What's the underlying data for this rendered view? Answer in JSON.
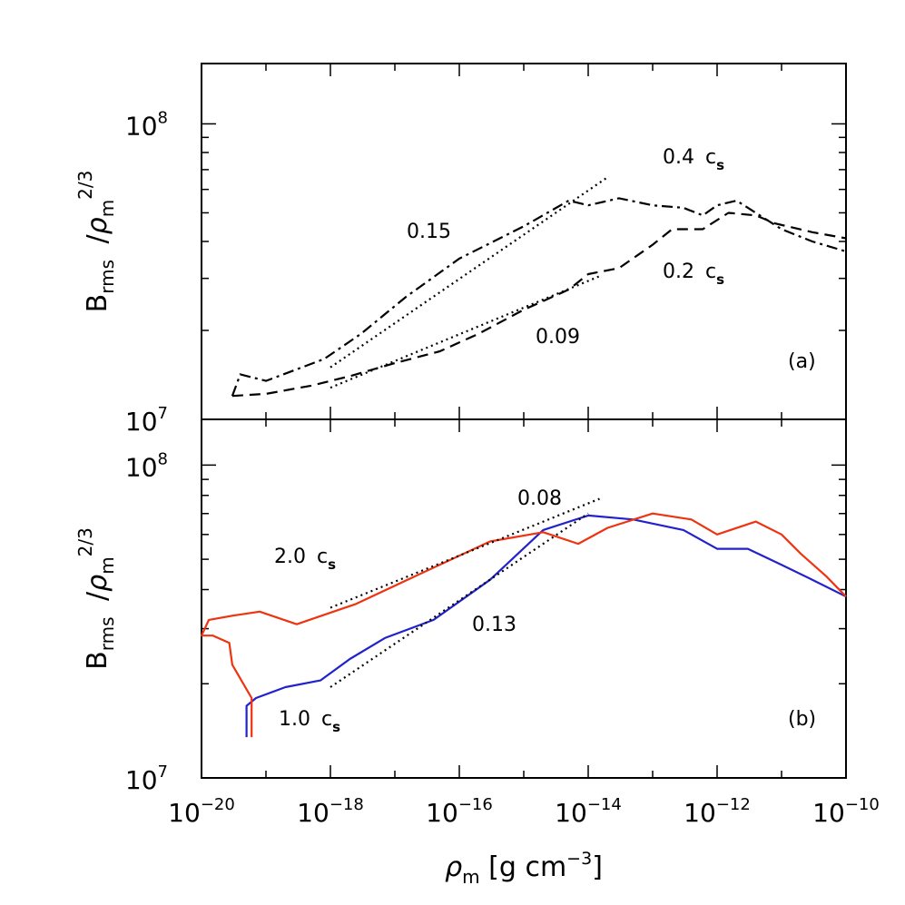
{
  "chart_data": [
    {
      "panel": "a",
      "type": "line",
      "xscale": "log",
      "yscale": "log",
      "xlim": [
        1e-20,
        1e-10
      ],
      "ylim": [
        10000000.0,
        160000000.0
      ],
      "ylabel": "B_rms / ρ_m^(2/3)",
      "panel_label": "(a)",
      "y_tick_labels": [
        {
          "base": "10",
          "exp": "7"
        },
        {
          "base": "10",
          "exp": "8"
        }
      ],
      "series": [
        {
          "name": "0.4 c_s",
          "style": "dashdot",
          "color": "#000000",
          "points": [
            [
              3e-20,
              12000000.0
            ],
            [
              4e-20,
              14200000.0
            ],
            [
              1e-19,
              13500000.0
            ],
            [
              8e-19,
              16000000.0
            ],
            [
              3e-18,
              19500000.0
            ],
            [
              1.5e-17,
              26000000.0
            ],
            [
              1e-16,
              35000000.0
            ],
            [
              1e-15,
              45000000.0
            ],
            [
              5e-15,
              55000000.0
            ],
            [
              1e-14,
              53000000.0
            ],
            [
              3e-14,
              56000000.0
            ],
            [
              1e-13,
              53000000.0
            ],
            [
              3e-13,
              52000000.0
            ],
            [
              6e-13,
              49000000.0
            ],
            [
              1e-12,
              53000000.0
            ],
            [
              2e-12,
              55000000.0
            ],
            [
              4e-12,
              50000000.0
            ],
            [
              1e-11,
              44000000.0
            ],
            [
              3e-11,
              40000000.0
            ],
            [
              1e-10,
              37000000.0
            ]
          ]
        },
        {
          "name": "0.2 c_s",
          "style": "dashed",
          "color": "#000000",
          "points": [
            [
              3e-20,
              12000000.0
            ],
            [
              1e-19,
              12200000.0
            ],
            [
              5e-19,
              13000000.0
            ],
            [
              2e-18,
              14000000.0
            ],
            [
              1e-17,
              15500000.0
            ],
            [
              5e-17,
              17000000.0
            ],
            [
              2e-16,
              19500000.0
            ],
            [
              1e-15,
              23500000.0
            ],
            [
              5e-15,
              27500000.0
            ],
            [
              1e-14,
              31000000.0
            ],
            [
              3e-14,
              32500000.0
            ],
            [
              1e-13,
              39000000.0
            ],
            [
              2e-13,
              44000000.0
            ],
            [
              6e-13,
              44000000.0
            ],
            [
              1.5e-12,
              50000000.0
            ],
            [
              4e-12,
              49000000.0
            ],
            [
              8e-12,
              46000000.0
            ],
            [
              3e-11,
              43000000.0
            ],
            [
              1e-10,
              41000000.0
            ]
          ]
        },
        {
          "name": "0.15",
          "style": "dotted",
          "color": "#000000",
          "points": [
            [
              1e-18,
              15000000.0
            ],
            [
              2e-14,
              66000000.0
            ]
          ]
        },
        {
          "name": "0.09",
          "style": "dotted",
          "color": "#000000",
          "points": [
            [
              1e-18,
              12800000.0
            ],
            [
              1.5e-14,
              30500000.0
            ]
          ]
        }
      ],
      "annotations": [
        {
          "text": "0.4",
          "sub": "c",
          "subsub": "s"
        },
        {
          "text": "0.15"
        },
        {
          "text": "0.2",
          "sub": "c",
          "subsub": "s"
        },
        {
          "text": "0.09"
        }
      ]
    },
    {
      "panel": "b",
      "type": "line",
      "xscale": "log",
      "yscale": "log",
      "xlim": [
        1e-20,
        1e-10
      ],
      "ylim": [
        10000000.0,
        140000000.0
      ],
      "xlabel": "ρ_m [g cm^-3]",
      "ylabel": "B_rms / ρ_m^(2/3)",
      "panel_label": "(b)",
      "y_tick_labels": [
        {
          "base": "10",
          "exp": "7"
        },
        {
          "base": "10",
          "exp": "8"
        }
      ],
      "x_tick_labels": [
        {
          "base": "10",
          "exp": "−20"
        },
        {
          "base": "10",
          "exp": "−18"
        },
        {
          "base": "10",
          "exp": "−16"
        },
        {
          "base": "10",
          "exp": "−14"
        },
        {
          "base": "10",
          "exp": "−12"
        },
        {
          "base": "10",
          "exp": "−10"
        }
      ],
      "series": [
        {
          "name": "1.0 c_s",
          "style": "solid",
          "color": "#2222cc",
          "points": [
            [
              5e-20,
              13500000.0
            ],
            [
              5e-20,
              17000000.0
            ],
            [
              7e-20,
              18000000.0
            ],
            [
              2e-19,
              19500000.0
            ],
            [
              7e-19,
              20500000.0
            ],
            [
              2e-18,
              24000000.0
            ],
            [
              7e-18,
              28000000.0
            ],
            [
              4e-17,
              32000000.0
            ],
            [
              3e-16,
              43000000.0
            ],
            [
              2e-15,
              62000000.0
            ],
            [
              1e-14,
              69000000.0
            ],
            [
              5e-14,
              67000000.0
            ],
            [
              3e-13,
              62000000.0
            ],
            [
              1e-12,
              54000000.0
            ],
            [
              3e-12,
              54000000.0
            ],
            [
              1e-11,
              48000000.0
            ],
            [
              3e-11,
              43000000.0
            ],
            [
              1e-10,
              38000000.0
            ]
          ]
        },
        {
          "name": "2.0 c_s",
          "style": "solid",
          "color": "#ee3311",
          "points": [
            [
              6e-20,
              13500000.0
            ],
            [
              6e-20,
              18000000.0
            ],
            [
              3e-20,
              23000000.0
            ],
            [
              2.7e-20,
              27000000.0
            ],
            [
              1.5e-20,
              28500000.0
            ],
            [
              1e-20,
              28500000.0
            ],
            [
              1.3e-20,
              32000000.0
            ],
            [
              3e-20,
              33000000.0
            ],
            [
              8e-20,
              34000000.0
            ],
            [
              3e-19,
              31000000.0
            ],
            [
              2.5e-18,
              36000000.0
            ],
            [
              2e-17,
              44000000.0
            ],
            [
              3e-16,
              57000000.0
            ],
            [
              2e-15,
              61000000.0
            ],
            [
              7e-15,
              56000000.0
            ],
            [
              2e-14,
              63000000.0
            ],
            [
              1e-13,
              70000000.0
            ],
            [
              4e-13,
              67000000.0
            ],
            [
              1e-12,
              60000000.0
            ],
            [
              4e-12,
              66000000.0
            ],
            [
              1e-11,
              60000000.0
            ],
            [
              2e-11,
              52000000.0
            ],
            [
              5e-11,
              44000000.0
            ],
            [
              1e-10,
              38000000.0
            ]
          ]
        },
        {
          "name": "0.08",
          "style": "dotted",
          "color": "#000000",
          "points": [
            [
              1e-18,
              35000000.0
            ],
            [
              1.5e-14,
              78000000.0
            ]
          ]
        },
        {
          "name": "0.13",
          "style": "dotted",
          "color": "#000000",
          "points": [
            [
              1e-18,
              19500000.0
            ],
            [
              1e-14,
              70000000.0
            ]
          ]
        }
      ],
      "annotations": [
        {
          "text": "0.08"
        },
        {
          "text": "2.0",
          "sub": "c",
          "subsub": "s"
        },
        {
          "text": "0.13"
        },
        {
          "text": "1.0",
          "sub": "c",
          "subsub": "s"
        }
      ]
    }
  ]
}
